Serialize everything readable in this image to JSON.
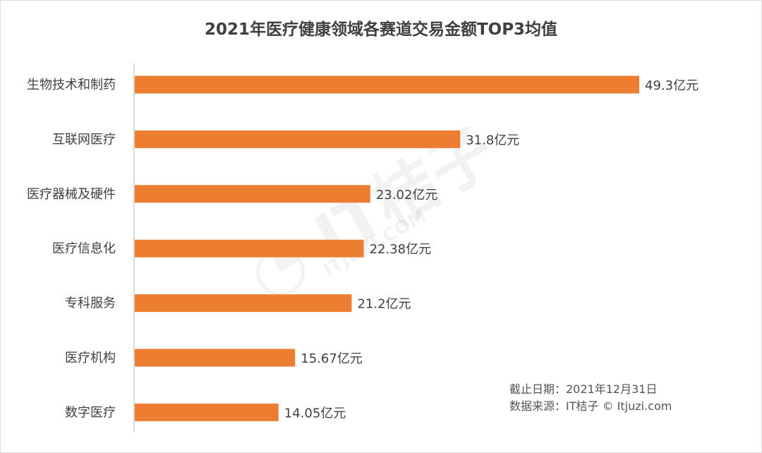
{
  "chart_data": {
    "type": "bar",
    "orientation": "horizontal",
    "title": "2021年医疗健康领域各赛道交易金额TOP3均值",
    "categories": [
      "生物技术和制药",
      "互联网医疗",
      "医疗器械及硬件",
      "医疗信息化",
      "专科服务",
      "医疗机构",
      "数字医疗"
    ],
    "values": [
      49.3,
      31.8,
      23.02,
      22.38,
      21.2,
      15.67,
      14.05
    ],
    "value_labels": [
      "49.3亿元",
      "31.8亿元",
      "23.02亿元",
      "22.38亿元",
      "21.2亿元",
      "15.67亿元",
      "14.05亿元"
    ],
    "unit": "亿元",
    "xlim": [
      0,
      49.3
    ],
    "grid": false,
    "bar_color": "#ED7D31"
  },
  "footer": {
    "date": "截止日期：2021年12月31日",
    "source": "数据来源：IT桔子 © Itjuzi.com"
  },
  "watermark": {
    "logo": "IT桔子",
    "url": "ITJUZI.COM"
  }
}
